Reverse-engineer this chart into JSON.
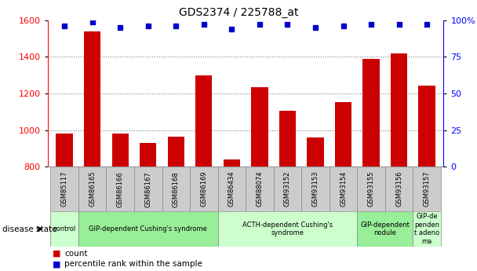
{
  "title": "GDS2374 / 225788_at",
  "samples": [
    "GSM85117",
    "GSM86165",
    "GSM86166",
    "GSM86167",
    "GSM86168",
    "GSM86169",
    "GSM86434",
    "GSM88074",
    "GSM93152",
    "GSM93153",
    "GSM93154",
    "GSM93155",
    "GSM93156",
    "GSM93157"
  ],
  "counts": [
    980,
    1540,
    980,
    930,
    965,
    1300,
    840,
    1235,
    1105,
    960,
    1155,
    1390,
    1420,
    1245
  ],
  "percentiles": [
    96,
    99,
    95,
    96,
    96,
    97,
    94,
    97,
    97,
    95,
    96,
    97,
    97,
    97
  ],
  "ymin": 800,
  "ymax": 1600,
  "y2min": 0,
  "y2max": 100,
  "yticks": [
    800,
    1000,
    1200,
    1400,
    1600
  ],
  "y2ticks_vals": [
    0,
    25,
    50,
    75,
    100
  ],
  "y2ticks_labels": [
    "0",
    "25",
    "50",
    "75",
    "100%"
  ],
  "bar_color": "#cc0000",
  "dot_color": "#0000cc",
  "grid_lines": [
    1000,
    1200,
    1400
  ],
  "groups": [
    {
      "label": "control",
      "start": 0,
      "end": 1,
      "color": "#ccffcc"
    },
    {
      "label": "GIP-dependent Cushing's syndrome",
      "start": 1,
      "end": 6,
      "color": "#99ee99"
    },
    {
      "label": "ACTH-dependent Cushing's\nsyndrome",
      "start": 6,
      "end": 11,
      "color": "#ccffcc"
    },
    {
      "label": "GIP-dependent\nnodule",
      "start": 11,
      "end": 13,
      "color": "#99ee99"
    },
    {
      "label": "GIP-de\npenden\nt adeno\nma",
      "start": 13,
      "end": 14,
      "color": "#ccffcc"
    }
  ],
  "sample_box_color": "#cccccc",
  "sample_box_edge": "#888888",
  "disease_state_label": "disease state",
  "legend_count": "count",
  "legend_percentile": "percentile rank within the sample",
  "bar_width": 0.6
}
